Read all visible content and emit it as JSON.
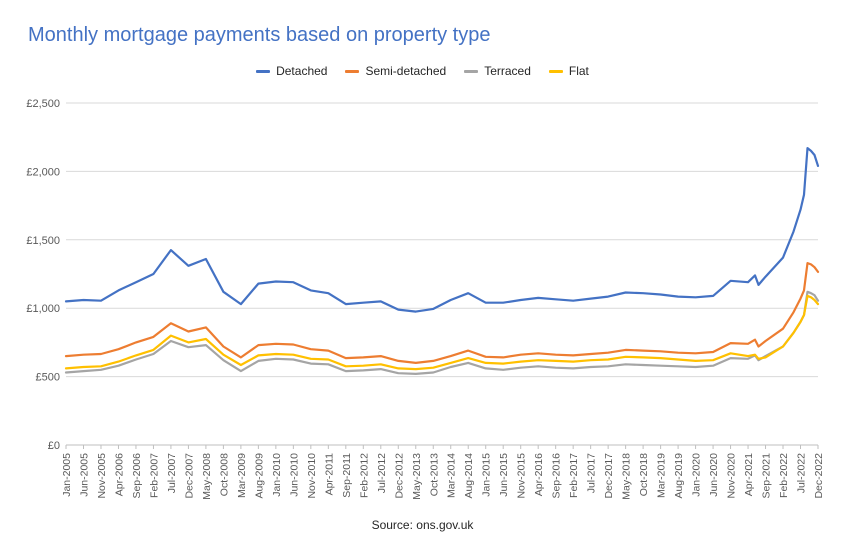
{
  "chart_data": {
    "type": "line",
    "title": "Monthly mortgage payments based on property type",
    "source": "Source: ons.gov.uk",
    "y_tick_labels": [
      "£0",
      "£500",
      "£1,000",
      "£1,500",
      "£2,000",
      "£2,500"
    ],
    "ylim": [
      0,
      2500
    ],
    "x_range": [
      "2005-01",
      "2022-12"
    ],
    "x_tick_labels": [
      "Jan-2005",
      "Jun-2005",
      "Nov-2005",
      "Apr-2006",
      "Sep-2006",
      "Feb-2007",
      "Jul-2007",
      "Dec-2007",
      "May-2008",
      "Oct-2008",
      "Mar-2009",
      "Aug-2009",
      "Jan-2010",
      "Jun-2010",
      "Nov-2010",
      "Apr-2011",
      "Sep-2011",
      "Feb-2012",
      "Jul-2012",
      "Dec-2012",
      "May-2013",
      "Oct-2013",
      "Mar-2014",
      "Aug-2014",
      "Jan-2015",
      "Jun-2015",
      "Nov-2015",
      "Apr-2016",
      "Sep-2016",
      "Feb-2017",
      "Jul-2017",
      "Dec-2017",
      "May-2018",
      "Oct-2018",
      "Mar-2019",
      "Aug-2019",
      "Jan-2020",
      "Jun-2020",
      "Nov-2020",
      "Apr-2021",
      "Sep-2021",
      "Feb-2022",
      "Jul-2022",
      "Dec-2022"
    ],
    "grid": "horizontal",
    "legend_position": "top",
    "series": [
      {
        "name": "Detached",
        "color": "#4472C4",
        "points": [
          [
            "2005-01",
            1050
          ],
          [
            "2005-06",
            1060
          ],
          [
            "2005-11",
            1055
          ],
          [
            "2006-04",
            1130
          ],
          [
            "2006-09",
            1190
          ],
          [
            "2007-02",
            1250
          ],
          [
            "2007-07",
            1425
          ],
          [
            "2007-12",
            1310
          ],
          [
            "2008-05",
            1360
          ],
          [
            "2008-10",
            1120
          ],
          [
            "2009-03",
            1030
          ],
          [
            "2009-08",
            1180
          ],
          [
            "2010-01",
            1195
          ],
          [
            "2010-06",
            1190
          ],
          [
            "2010-11",
            1130
          ],
          [
            "2011-04",
            1110
          ],
          [
            "2011-09",
            1030
          ],
          [
            "2012-02",
            1040
          ],
          [
            "2012-07",
            1050
          ],
          [
            "2012-12",
            990
          ],
          [
            "2013-05",
            975
          ],
          [
            "2013-10",
            995
          ],
          [
            "2014-03",
            1060
          ],
          [
            "2014-08",
            1110
          ],
          [
            "2015-01",
            1040
          ],
          [
            "2015-06",
            1040
          ],
          [
            "2015-11",
            1060
          ],
          [
            "2016-04",
            1075
          ],
          [
            "2016-09",
            1065
          ],
          [
            "2017-02",
            1055
          ],
          [
            "2017-07",
            1070
          ],
          [
            "2017-12",
            1085
          ],
          [
            "2018-05",
            1115
          ],
          [
            "2018-10",
            1110
          ],
          [
            "2019-03",
            1100
          ],
          [
            "2019-08",
            1085
          ],
          [
            "2020-01",
            1080
          ],
          [
            "2020-06",
            1090
          ],
          [
            "2020-11",
            1200
          ],
          [
            "2021-04",
            1190
          ],
          [
            "2021-06",
            1240
          ],
          [
            "2021-07",
            1170
          ],
          [
            "2021-09",
            1230
          ],
          [
            "2022-02",
            1370
          ],
          [
            "2022-05",
            1560
          ],
          [
            "2022-07",
            1720
          ],
          [
            "2022-08",
            1830
          ],
          [
            "2022-09",
            2170
          ],
          [
            "2022-10",
            2150
          ],
          [
            "2022-11",
            2120
          ],
          [
            "2022-12",
            2040
          ]
        ]
      },
      {
        "name": "Semi-detached",
        "color": "#ED7D31",
        "points": [
          [
            "2005-01",
            650
          ],
          [
            "2005-06",
            660
          ],
          [
            "2005-11",
            665
          ],
          [
            "2006-04",
            700
          ],
          [
            "2006-09",
            750
          ],
          [
            "2007-02",
            790
          ],
          [
            "2007-07",
            890
          ],
          [
            "2007-12",
            830
          ],
          [
            "2008-05",
            860
          ],
          [
            "2008-10",
            720
          ],
          [
            "2009-03",
            640
          ],
          [
            "2009-08",
            730
          ],
          [
            "2010-01",
            740
          ],
          [
            "2010-06",
            735
          ],
          [
            "2010-11",
            700
          ],
          [
            "2011-04",
            690
          ],
          [
            "2011-09",
            635
          ],
          [
            "2012-02",
            640
          ],
          [
            "2012-07",
            650
          ],
          [
            "2012-12",
            615
          ],
          [
            "2013-05",
            600
          ],
          [
            "2013-10",
            615
          ],
          [
            "2014-03",
            650
          ],
          [
            "2014-08",
            690
          ],
          [
            "2015-01",
            645
          ],
          [
            "2015-06",
            640
          ],
          [
            "2015-11",
            660
          ],
          [
            "2016-04",
            670
          ],
          [
            "2016-09",
            660
          ],
          [
            "2017-02",
            655
          ],
          [
            "2017-07",
            665
          ],
          [
            "2017-12",
            675
          ],
          [
            "2018-05",
            695
          ],
          [
            "2018-10",
            690
          ],
          [
            "2019-03",
            685
          ],
          [
            "2019-08",
            675
          ],
          [
            "2020-01",
            670
          ],
          [
            "2020-06",
            680
          ],
          [
            "2020-11",
            745
          ],
          [
            "2021-04",
            740
          ],
          [
            "2021-06",
            770
          ],
          [
            "2021-07",
            720
          ],
          [
            "2021-09",
            760
          ],
          [
            "2022-02",
            850
          ],
          [
            "2022-05",
            970
          ],
          [
            "2022-07",
            1070
          ],
          [
            "2022-08",
            1130
          ],
          [
            "2022-09",
            1330
          ],
          [
            "2022-10",
            1320
          ],
          [
            "2022-11",
            1300
          ],
          [
            "2022-12",
            1265
          ]
        ]
      },
      {
        "name": "Terraced",
        "color": "#A5A5A5",
        "points": [
          [
            "2005-01",
            530
          ],
          [
            "2005-06",
            540
          ],
          [
            "2005-11",
            550
          ],
          [
            "2006-04",
            580
          ],
          [
            "2006-09",
            625
          ],
          [
            "2007-02",
            665
          ],
          [
            "2007-07",
            760
          ],
          [
            "2007-12",
            715
          ],
          [
            "2008-05",
            730
          ],
          [
            "2008-10",
            620
          ],
          [
            "2009-03",
            540
          ],
          [
            "2009-08",
            615
          ],
          [
            "2010-01",
            630
          ],
          [
            "2010-06",
            625
          ],
          [
            "2010-11",
            595
          ],
          [
            "2011-04",
            590
          ],
          [
            "2011-09",
            540
          ],
          [
            "2012-02",
            545
          ],
          [
            "2012-07",
            555
          ],
          [
            "2012-12",
            525
          ],
          [
            "2013-05",
            520
          ],
          [
            "2013-10",
            530
          ],
          [
            "2014-03",
            570
          ],
          [
            "2014-08",
            600
          ],
          [
            "2015-01",
            560
          ],
          [
            "2015-06",
            550
          ],
          [
            "2015-11",
            565
          ],
          [
            "2016-04",
            575
          ],
          [
            "2016-09",
            565
          ],
          [
            "2017-02",
            560
          ],
          [
            "2017-07",
            570
          ],
          [
            "2017-12",
            575
          ],
          [
            "2018-05",
            590
          ],
          [
            "2018-10",
            585
          ],
          [
            "2019-03",
            580
          ],
          [
            "2019-08",
            575
          ],
          [
            "2020-01",
            570
          ],
          [
            "2020-06",
            580
          ],
          [
            "2020-11",
            635
          ],
          [
            "2021-04",
            630
          ],
          [
            "2021-06",
            655
          ],
          [
            "2021-07",
            620
          ],
          [
            "2021-09",
            650
          ],
          [
            "2022-02",
            720
          ],
          [
            "2022-05",
            820
          ],
          [
            "2022-07",
            900
          ],
          [
            "2022-08",
            950
          ],
          [
            "2022-09",
            1120
          ],
          [
            "2022-10",
            1110
          ],
          [
            "2022-11",
            1095
          ],
          [
            "2022-12",
            1055
          ]
        ]
      },
      {
        "name": "Flat",
        "color": "#FFC000",
        "points": [
          [
            "2005-01",
            560
          ],
          [
            "2005-06",
            570
          ],
          [
            "2005-11",
            575
          ],
          [
            "2006-04",
            610
          ],
          [
            "2006-09",
            655
          ],
          [
            "2007-02",
            695
          ],
          [
            "2007-07",
            800
          ],
          [
            "2007-12",
            750
          ],
          [
            "2008-05",
            775
          ],
          [
            "2008-10",
            660
          ],
          [
            "2009-03",
            585
          ],
          [
            "2009-08",
            655
          ],
          [
            "2010-01",
            665
          ],
          [
            "2010-06",
            660
          ],
          [
            "2010-11",
            630
          ],
          [
            "2011-04",
            625
          ],
          [
            "2011-09",
            575
          ],
          [
            "2012-02",
            580
          ],
          [
            "2012-07",
            590
          ],
          [
            "2012-12",
            560
          ],
          [
            "2013-05",
            555
          ],
          [
            "2013-10",
            565
          ],
          [
            "2014-03",
            600
          ],
          [
            "2014-08",
            635
          ],
          [
            "2015-01",
            600
          ],
          [
            "2015-06",
            595
          ],
          [
            "2015-11",
            610
          ],
          [
            "2016-04",
            620
          ],
          [
            "2016-09",
            615
          ],
          [
            "2017-02",
            610
          ],
          [
            "2017-07",
            620
          ],
          [
            "2017-12",
            625
          ],
          [
            "2018-05",
            645
          ],
          [
            "2018-10",
            640
          ],
          [
            "2019-03",
            635
          ],
          [
            "2019-08",
            625
          ],
          [
            "2020-01",
            615
          ],
          [
            "2020-06",
            620
          ],
          [
            "2020-11",
            670
          ],
          [
            "2021-04",
            650
          ],
          [
            "2021-06",
            660
          ],
          [
            "2021-07",
            630
          ],
          [
            "2021-09",
            640
          ],
          [
            "2022-02",
            720
          ],
          [
            "2022-05",
            820
          ],
          [
            "2022-07",
            900
          ],
          [
            "2022-08",
            950
          ],
          [
            "2022-09",
            1090
          ],
          [
            "2022-10",
            1080
          ],
          [
            "2022-11",
            1060
          ],
          [
            "2022-12",
            1030
          ]
        ]
      }
    ]
  }
}
